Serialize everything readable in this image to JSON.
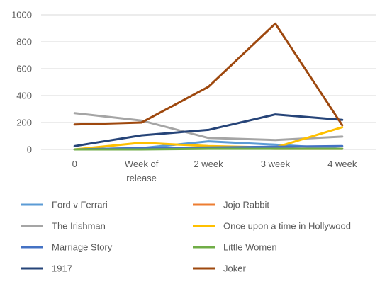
{
  "chart_data": {
    "type": "line",
    "title": "",
    "xlabel": "",
    "ylabel": "",
    "categories": [
      "0",
      "Week of release",
      "2 week",
      "3 week",
      "4 week"
    ],
    "ylim": [
      0,
      1000
    ],
    "yticks": [
      0,
      200,
      400,
      600,
      800,
      1000
    ],
    "grid": true,
    "legend_position": "bottom",
    "series": [
      {
        "name": "Ford v Ferrari",
        "color": "#5B9BD5",
        "values": [
          0,
          10,
          60,
          35,
          5
        ]
      },
      {
        "name": "Jojo Rabbit",
        "color": "#ED7D31",
        "values": [
          0,
          5,
          10,
          5,
          5
        ]
      },
      {
        "name": "The Irishman",
        "color": "#A5A5A5",
        "values": [
          270,
          215,
          85,
          70,
          95
        ]
      },
      {
        "name": "Once upon a time in Hollywood",
        "color": "#FFC000",
        "values": [
          0,
          50,
          25,
          15,
          165
        ]
      },
      {
        "name": "Marriage Story",
        "color": "#4472C4",
        "values": [
          0,
          10,
          15,
          20,
          25
        ]
      },
      {
        "name": "Little Women",
        "color": "#70AD47",
        "values": [
          0,
          0,
          5,
          5,
          5
        ]
      },
      {
        "name": "1917",
        "color": "#264478",
        "values": [
          25,
          105,
          145,
          260,
          220
        ]
      },
      {
        "name": "Joker",
        "color": "#9E480E",
        "values": [
          185,
          200,
          465,
          935,
          180
        ]
      }
    ]
  }
}
